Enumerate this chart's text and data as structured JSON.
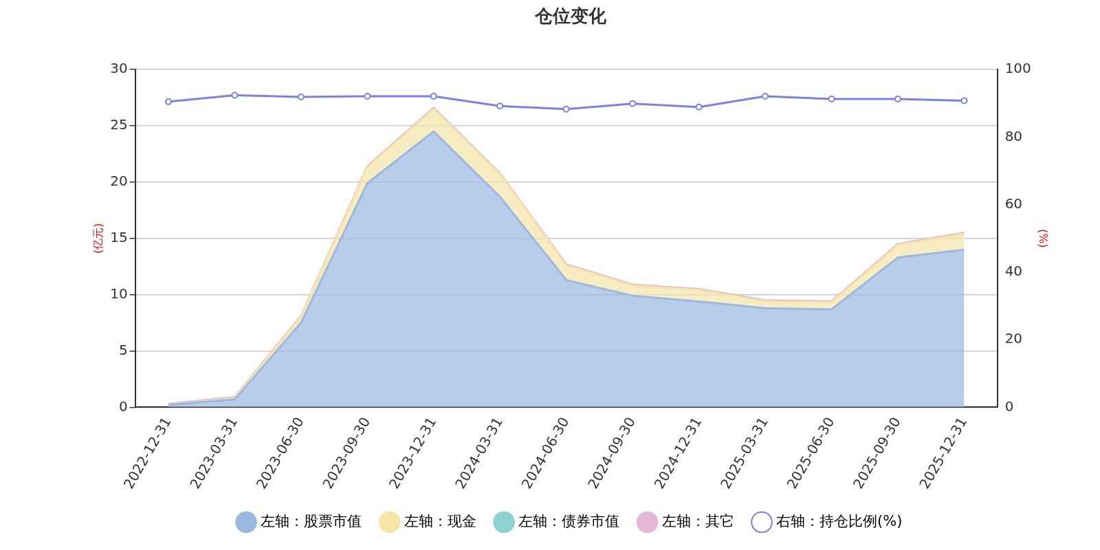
{
  "chart_data": {
    "type": "area",
    "title": "仓位变化",
    "ylabel": "(亿元)",
    "y2label": "(%)",
    "categories": [
      "2022-12-31",
      "2023-03-31",
      "2023-06-30",
      "2023-09-30",
      "2023-12-31",
      "2024-03-31",
      "2024-06-30",
      "2024-09-30",
      "2024-12-31",
      "2025-03-31",
      "2025-06-30",
      "2025-09-30",
      "2025-12-31"
    ],
    "stacked": true,
    "ylim": [
      0,
      30
    ],
    "yticks": [
      0,
      5,
      10,
      15,
      20,
      25,
      30
    ],
    "y2lim": [
      0,
      100
    ],
    "y2ticks": [
      0,
      20,
      40,
      60,
      80,
      100
    ],
    "grid": "y",
    "legend": "bottom",
    "series": [
      {
        "name": "左轴：股票市值",
        "marker": "none",
        "color": "#9ab8e0",
        "values": [
          0.2,
          0.7,
          7.5,
          19.9,
          24.5,
          18.7,
          11.3,
          9.9,
          9.4,
          8.8,
          8.7,
          13.3,
          14.0
        ]
      },
      {
        "name": "左轴：现金",
        "marker": "none",
        "color": "#f5e6a8",
        "values": [
          0.0,
          0.1,
          0.5,
          1.4,
          2.0,
          2.0,
          1.3,
          0.9,
          1.0,
          0.6,
          0.6,
          1.1,
          1.4
        ]
      },
      {
        "name": "左轴：债券市值",
        "marker": "none",
        "color": "#8fd0d0",
        "values": [
          null,
          null,
          null,
          null,
          null,
          null,
          null,
          null,
          null,
          null,
          null,
          null,
          null
        ]
      },
      {
        "name": "左轴：其它",
        "marker": "none",
        "color": "#e6b8d8",
        "values": [
          0.1,
          0.1,
          0.1,
          0.1,
          0.1,
          0.1,
          0.1,
          0.1,
          0.1,
          0.1,
          0.1,
          0.1,
          0.1
        ]
      },
      {
        "name": "右轴：持仓比例(%)",
        "type": "line",
        "axis": "y2",
        "marker": "circle",
        "color": "#7b7ff0",
        "values": [
          90.5,
          92.4,
          91.9,
          92.1,
          92.1,
          89.2,
          88.3,
          89.9,
          88.9,
          92.1,
          91.3,
          91.3,
          90.8
        ]
      }
    ]
  }
}
